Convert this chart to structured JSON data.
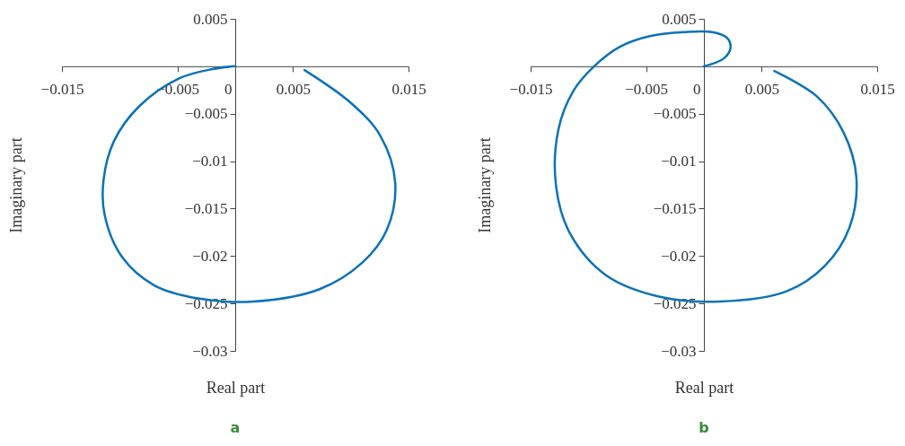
{
  "chart_data": [
    {
      "type": "line",
      "title": "a",
      "xlabel": "Real part",
      "ylabel": "Imaginary part",
      "xlim": [
        -0.015,
        0.015
      ],
      "ylim": [
        -0.03,
        0.005
      ],
      "xticks": [
        -0.015,
        -0.005,
        {
          "value": 0,
          "label": "0"
        },
        0.005,
        0.015
      ],
      "yticks": [
        0.005,
        -0.005,
        -0.01,
        -0.015,
        -0.02,
        -0.025,
        -0.03
      ],
      "series": [
        {
          "color": "#0a72b8",
          "x": [
            0.006,
            0.00995,
            0.01255,
            0.01385,
            0.0131,
            0.011,
            0.0073,
            0.0016,
            -0.0031,
            -0.007,
            -0.0098,
            -0.0113,
            -0.0114,
            -0.0105,
            -0.0083,
            -0.0049,
            -0.002,
            0
          ],
          "values": [
            -0.0004,
            -0.0038,
            -0.0073,
            -0.0123,
            -0.0173,
            -0.0207,
            -0.0235,
            -0.0248,
            -0.0245,
            -0.0231,
            -0.0201,
            -0.0157,
            -0.012,
            -0.0079,
            -0.0042,
            -0.0013,
            -0.0003,
            0
          ]
        }
      ]
    },
    {
      "type": "line",
      "title": "b",
      "xlabel": "Real part",
      "ylabel": "Imaginary part",
      "xlim": [
        -0.015,
        0.015
      ],
      "ylim": [
        -0.03,
        0.005
      ],
      "xticks": [
        -0.015,
        -0.005,
        {
          "value": 0,
          "label": "0"
        },
        0.005,
        0.015
      ],
      "yticks": [
        0.005,
        -0.005,
        -0.01,
        -0.015,
        -0.02,
        -0.025,
        -0.03
      ],
      "series": [
        {
          "color": "#0a72b8",
          "x": [
            0.0061,
            0.0098,
            0.0121,
            0.0132,
            0.0126,
            0.0105,
            0.0072,
            0.0014,
            -0.0038,
            -0.0085,
            -0.0116,
            -0.0128,
            -0.0126,
            -0.0113,
            -0.0095,
            -0.0072,
            -0.0046,
            -0.0017,
            0.0007,
            0.002,
            0.0023,
            0.0017,
            0
          ],
          "values": [
            -0.0005,
            -0.0032,
            -0.007,
            -0.0117,
            -0.017,
            -0.021,
            -0.0237,
            -0.0248,
            -0.0243,
            -0.022,
            -0.0176,
            -0.0126,
            -0.0067,
            -0.0026,
            0,
            0.0021,
            0.0032,
            0.0036,
            0.0036,
            0.003,
            0.0019,
            0.0008,
            0
          ]
        }
      ]
    }
  ]
}
